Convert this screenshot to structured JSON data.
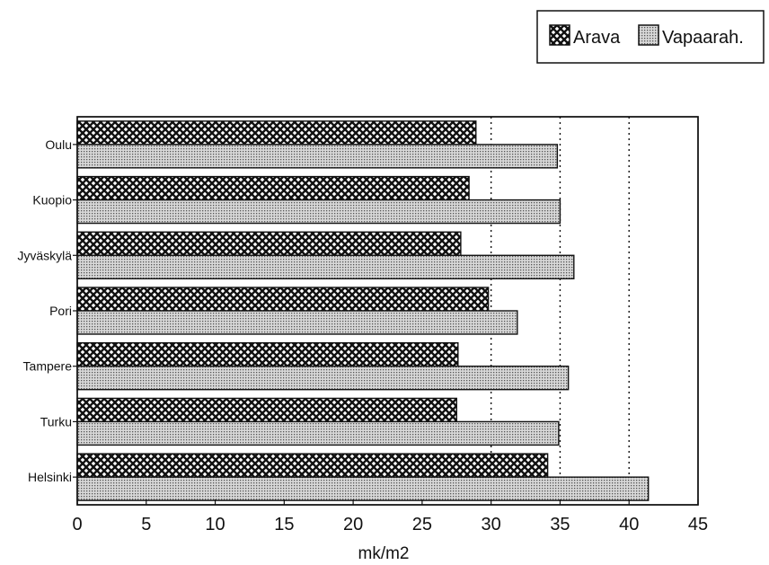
{
  "chart_data": {
    "type": "bar",
    "orientation": "horizontal",
    "categories": [
      "Oulu",
      "Kuopio",
      "Jyväskylä",
      "Pori",
      "Tampere",
      "Turku",
      "Helsinki"
    ],
    "series": [
      {
        "name": "Arava",
        "values": [
          28.9,
          28.4,
          27.8,
          29.8,
          27.6,
          27.5,
          34.1
        ],
        "pattern": "crosshatch-dark"
      },
      {
        "name": "Vapaarah.",
        "values": [
          34.8,
          35.0,
          36.0,
          31.9,
          35.6,
          34.9,
          41.4
        ],
        "pattern": "dots-light"
      }
    ],
    "xlabel": "mk/m2",
    "xlim": [
      0,
      45
    ],
    "xticks": [
      0,
      5,
      10,
      15,
      20,
      25,
      30,
      35,
      40,
      45
    ],
    "xtick_labels": [
      "0",
      "5",
      "10",
      "15",
      "20",
      "25",
      "30",
      "35",
      "40",
      "45"
    ],
    "gridlines_x": [
      30,
      35,
      40
    ],
    "grid_style": "dotted",
    "legend_position": "top-right"
  },
  "colors": {
    "ink": "#111111",
    "background": "#ffffff",
    "dot_fill": "#d8d8d8"
  }
}
